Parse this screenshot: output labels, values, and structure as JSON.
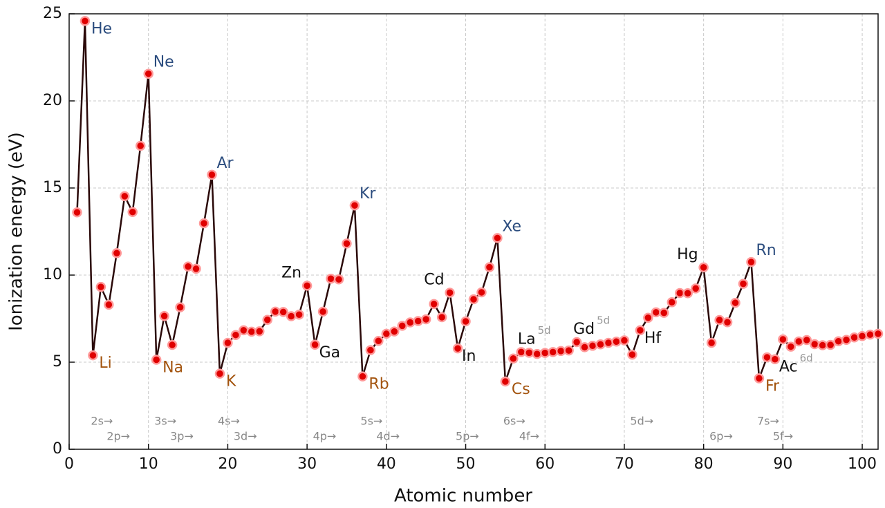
{
  "chart_data": {
    "type": "line",
    "xlabel": "Atomic number",
    "ylabel": "Ionization energy (eV)",
    "x": [
      1,
      2,
      3,
      4,
      5,
      6,
      7,
      8,
      9,
      10,
      11,
      12,
      13,
      14,
      15,
      16,
      17,
      18,
      19,
      20,
      21,
      22,
      23,
      24,
      25,
      26,
      27,
      28,
      29,
      30,
      31,
      32,
      33,
      34,
      35,
      36,
      37,
      38,
      39,
      40,
      41,
      42,
      43,
      44,
      45,
      46,
      47,
      48,
      49,
      50,
      51,
      52,
      53,
      54,
      55,
      56,
      57,
      58,
      59,
      60,
      61,
      62,
      63,
      64,
      65,
      66,
      67,
      68,
      69,
      70,
      71,
      72,
      73,
      74,
      75,
      76,
      77,
      78,
      79,
      80,
      81,
      82,
      83,
      84,
      85,
      86,
      87,
      88,
      89,
      90,
      91,
      92,
      93,
      94,
      95,
      96,
      97,
      98,
      99,
      100,
      101,
      102
    ],
    "series": [
      {
        "color": "#e00000",
        "line_color": "#2a0808",
        "values": [
          13.6,
          24.59,
          5.39,
          9.32,
          8.3,
          11.26,
          14.53,
          13.62,
          17.42,
          21.56,
          5.14,
          7.65,
          5.99,
          8.15,
          10.49,
          10.36,
          12.97,
          15.76,
          4.34,
          6.11,
          6.56,
          6.83,
          6.75,
          6.77,
          7.43,
          7.9,
          7.88,
          7.64,
          7.73,
          9.39,
          6.0,
          7.9,
          9.79,
          9.75,
          11.81,
          14.0,
          4.18,
          5.69,
          6.22,
          6.63,
          6.76,
          7.09,
          7.28,
          7.36,
          7.46,
          8.34,
          7.58,
          8.99,
          5.79,
          7.34,
          8.61,
          9.01,
          10.45,
          12.13,
          3.89,
          5.21,
          5.58,
          5.54,
          5.47,
          5.53,
          5.58,
          5.64,
          5.67,
          6.15,
          5.86,
          5.94,
          6.02,
          6.11,
          6.18,
          6.25,
          5.43,
          6.83,
          7.55,
          7.86,
          7.83,
          8.44,
          8.97,
          8.96,
          9.23,
          10.44,
          6.11,
          7.42,
          7.29,
          8.41,
          9.5,
          10.75,
          4.07,
          5.28,
          5.17,
          6.31,
          5.89,
          6.19,
          6.27,
          6.03,
          5.97,
          5.99,
          6.2,
          6.28,
          6.42,
          6.5,
          6.58,
          6.63
        ]
      }
    ],
    "xlim": [
      0,
      102
    ],
    "ylim": [
      0,
      25
    ],
    "xticks": [
      0,
      10,
      20,
      30,
      40,
      50,
      60,
      70,
      80,
      90,
      100
    ],
    "yticks": [
      0,
      5,
      10,
      15,
      20,
      25
    ],
    "grid": true,
    "annotations": [
      {
        "text": "He",
        "z": 2,
        "color": "#2b4c7e",
        "position": "below-right"
      },
      {
        "text": "Ne",
        "z": 10,
        "color": "#2b4c7e",
        "position": "above-right"
      },
      {
        "text": "Ar",
        "z": 18,
        "color": "#2b4c7e",
        "position": "above-right"
      },
      {
        "text": "Kr",
        "z": 36,
        "color": "#2b4c7e",
        "position": "above-right"
      },
      {
        "text": "Xe",
        "z": 54,
        "color": "#2b4c7e",
        "position": "above-right"
      },
      {
        "text": "Rn",
        "z": 86,
        "color": "#2b4c7e",
        "position": "above-right"
      },
      {
        "text": "Li",
        "z": 3,
        "color": "#a3540f",
        "position": "below-right"
      },
      {
        "text": "Na",
        "z": 11,
        "color": "#a3540f",
        "position": "below-right"
      },
      {
        "text": "K",
        "z": 19,
        "color": "#a3540f",
        "position": "below-right"
      },
      {
        "text": "Rb",
        "z": 37,
        "color": "#a3540f",
        "position": "below-right"
      },
      {
        "text": "Cs",
        "z": 55,
        "color": "#a3540f",
        "position": "below-right"
      },
      {
        "text": "Fr",
        "z": 87,
        "color": "#a3540f",
        "position": "below-right"
      },
      {
        "text": "Zn",
        "z": 30,
        "color": "#111111",
        "position": "above-left"
      },
      {
        "text": "Ga",
        "z": 31,
        "color": "#111111",
        "position": "right"
      },
      {
        "text": "Cd",
        "z": 48,
        "color": "#111111",
        "position": "above-left"
      },
      {
        "text": "In",
        "z": 49,
        "color": "#111111",
        "position": "right"
      },
      {
        "text": "La",
        "z": 57,
        "color": "#111111",
        "position": "above",
        "sup": "5d"
      },
      {
        "text": "Gd",
        "z": 64,
        "color": "#111111",
        "position": "above",
        "sup": "5d"
      },
      {
        "text": "Hf",
        "z": 72,
        "color": "#111111",
        "position": "right"
      },
      {
        "text": "Hg",
        "z": 80,
        "color": "#111111",
        "position": "above-left"
      },
      {
        "text": "Ac",
        "z": 89,
        "color": "#111111",
        "position": "right",
        "sup": "6d"
      }
    ],
    "orbitals": [
      {
        "text": "2s→",
        "x": 3
      },
      {
        "text": "2p→",
        "x": 5
      },
      {
        "text": "3s→",
        "x": 11
      },
      {
        "text": "3p→",
        "x": 13
      },
      {
        "text": "4s→",
        "x": 19
      },
      {
        "text": "3d→",
        "x": 21
      },
      {
        "text": "4p→",
        "x": 31
      },
      {
        "text": "5s→",
        "x": 37
      },
      {
        "text": "4d→",
        "x": 39
      },
      {
        "text": "5p→",
        "x": 49
      },
      {
        "text": "6s→",
        "x": 55
      },
      {
        "text": "4f→",
        "x": 57
      },
      {
        "text": "5d→",
        "x": 71
      },
      {
        "text": "6p→",
        "x": 81
      },
      {
        "text": "7s→",
        "x": 87
      },
      {
        "text": "5f→",
        "x": 89
      }
    ]
  }
}
